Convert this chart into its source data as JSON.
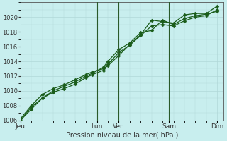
{
  "xlabel": "Pression niveau de la mer( hPa )",
  "bg_color": "#c8eeee",
  "grid_color": "#b0d8d8",
  "line_color": "#1a5c1a",
  "ylim": [
    1006,
    1022
  ],
  "yticks": [
    1006,
    1008,
    1010,
    1012,
    1014,
    1016,
    1018,
    1020
  ],
  "day_labels": [
    "Jeu",
    "Lun",
    "Ven",
    "Sam",
    "Dim"
  ],
  "day_positions": [
    0.0,
    3.5,
    4.5,
    6.8,
    9.0
  ],
  "xlim": [
    0,
    9.3
  ],
  "series1_x": [
    0.0,
    0.5,
    1.0,
    1.5,
    2.0,
    2.5,
    3.0,
    3.3,
    3.8,
    4.0,
    4.5,
    5.0,
    5.5,
    6.0,
    6.5,
    7.0,
    7.5,
    8.0,
    8.5,
    9.0
  ],
  "series1_y": [
    1006.2,
    1008.0,
    1009.5,
    1010.3,
    1010.8,
    1011.5,
    1012.2,
    1012.6,
    1013.0,
    1013.4,
    1014.8,
    1016.3,
    1017.6,
    1019.6,
    1019.4,
    1019.2,
    1020.3,
    1020.5,
    1020.5,
    1021.5
  ],
  "series2_x": [
    0.0,
    0.5,
    1.0,
    1.5,
    2.0,
    2.5,
    3.0,
    3.3,
    3.8,
    4.0,
    4.5,
    5.0,
    5.5,
    6.0,
    6.5,
    7.0,
    7.5,
    8.0,
    8.5,
    9.0
  ],
  "series2_y": [
    1006.0,
    1007.5,
    1009.0,
    1010.0,
    1010.6,
    1011.2,
    1012.0,
    1012.4,
    1013.2,
    1014.0,
    1015.6,
    1016.5,
    1017.9,
    1018.2,
    1019.6,
    1019.0,
    1019.8,
    1020.2,
    1020.4,
    1020.8
  ],
  "series3_x": [
    0.0,
    0.5,
    1.0,
    1.5,
    2.0,
    2.5,
    3.0,
    3.3,
    3.8,
    4.0,
    4.5,
    5.0,
    5.5,
    6.0,
    6.5,
    7.0,
    7.5,
    8.0,
    8.5,
    9.0
  ],
  "series3_y": [
    1006.0,
    1007.8,
    1009.0,
    1009.8,
    1010.3,
    1010.9,
    1011.8,
    1012.2,
    1012.8,
    1013.6,
    1015.2,
    1016.2,
    1017.5,
    1018.8,
    1019.0,
    1018.8,
    1019.5,
    1020.0,
    1020.2,
    1021.0
  ],
  "vline_positions": [
    3.5,
    4.5,
    6.8
  ],
  "vline_color": "#2a5a2a",
  "marker_size": 2.5,
  "line_width": 0.9
}
